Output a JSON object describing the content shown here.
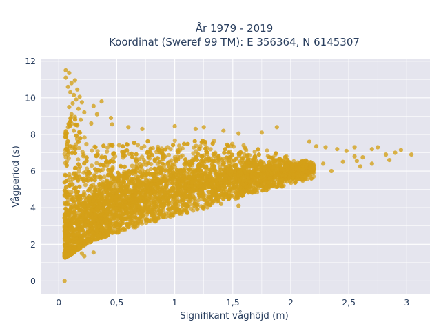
{
  "chart_data": {
    "type": "scatter",
    "title_lines": [
      "År 1979 - 2019",
      "Koordinat (Sweref 99 TM): E 356364, N 6145307"
    ],
    "xlabel": "Signifikant våghöjd (m)",
    "ylabel": "Vågperiod (s)",
    "xlim": [
      -0.15,
      3.2
    ],
    "ylim": [
      -0.7,
      12.1
    ],
    "x_ticks": [
      0,
      0.5,
      1,
      1.5,
      2,
      2.5,
      3
    ],
    "x_tick_labels": [
      "0",
      "0,5",
      "1",
      "1,5",
      "2",
      "2,5",
      "3"
    ],
    "y_ticks": [
      0,
      2,
      4,
      6,
      8,
      10,
      12
    ],
    "y_tick_labels": [
      "0",
      "2",
      "4",
      "6",
      "8",
      "10",
      "12"
    ],
    "grid": true,
    "marker_color": "#D4A017",
    "plot_background": "#E5E5EE",
    "series": [
      {
        "points": [
          [
            0.06,
            11.5
          ],
          [
            0.09,
            11.35
          ],
          [
            0.06,
            11.1
          ],
          [
            0.11,
            10.8
          ],
          [
            0.14,
            10.95
          ],
          [
            0.08,
            10.6
          ],
          [
            0.16,
            10.45
          ],
          [
            0.1,
            10.3
          ],
          [
            0.13,
            10.15
          ],
          [
            0.18,
            10.05
          ],
          [
            0.15,
            9.9
          ],
          [
            0.12,
            9.7
          ],
          [
            0.2,
            9.75
          ],
          [
            0.09,
            9.5
          ],
          [
            0.17,
            9.4
          ],
          [
            0.22,
            9.2
          ],
          [
            0.11,
            9.1
          ],
          [
            0.14,
            8.95
          ],
          [
            0.1,
            8.7
          ],
          [
            0.19,
            8.8
          ],
          [
            0.08,
            8.4
          ],
          [
            0.16,
            8.5
          ],
          [
            0.13,
            8.2
          ],
          [
            0.07,
            8.05
          ],
          [
            0.3,
            9.55
          ],
          [
            0.37,
            9.8
          ],
          [
            0.33,
            9.1
          ],
          [
            0.45,
            8.9
          ],
          [
            0.28,
            8.6
          ],
          [
            0.46,
            8.55
          ],
          [
            0.6,
            8.4
          ],
          [
            0.72,
            8.3
          ],
          [
            1.0,
            8.45
          ],
          [
            1.18,
            8.3
          ],
          [
            1.25,
            8.4
          ],
          [
            1.42,
            8.2
          ],
          [
            1.55,
            8.05
          ],
          [
            1.75,
            8.1
          ],
          [
            1.88,
            8.4
          ],
          [
            2.16,
            7.6
          ],
          [
            2.22,
            7.35
          ],
          [
            2.3,
            7.3
          ],
          [
            2.4,
            7.2
          ],
          [
            2.48,
            7.1
          ],
          [
            2.55,
            7.3
          ],
          [
            2.7,
            7.2
          ],
          [
            2.75,
            7.3
          ],
          [
            2.82,
            6.9
          ],
          [
            2.9,
            7.0
          ],
          [
            2.95,
            7.15
          ],
          [
            3.04,
            6.9
          ],
          [
            2.85,
            6.6
          ],
          [
            2.62,
            6.75
          ],
          [
            2.55,
            6.8
          ],
          [
            2.7,
            6.4
          ],
          [
            2.6,
            6.25
          ],
          [
            2.57,
            6.55
          ],
          [
            2.45,
            6.5
          ],
          [
            2.28,
            6.4
          ],
          [
            2.35,
            6.0
          ],
          [
            2.2,
            6.2
          ],
          [
            2.1,
            6.1
          ],
          [
            1.55,
            4.1
          ],
          [
            1.4,
            4.2
          ],
          [
            1.25,
            4.05
          ],
          [
            1.1,
            3.9
          ],
          [
            0.95,
            3.55
          ],
          [
            0.8,
            3.35
          ],
          [
            0.6,
            3.0
          ],
          [
            0.45,
            2.75
          ],
          [
            0.35,
            2.5
          ],
          [
            0.25,
            2.2
          ],
          [
            0.18,
            1.9
          ],
          [
            0.12,
            1.6
          ],
          [
            0.08,
            1.4
          ],
          [
            0.06,
            1.45
          ],
          [
            0.2,
            1.5
          ],
          [
            0.22,
            1.35
          ],
          [
            0.3,
            1.55
          ],
          [
            0.05,
            0.0
          ],
          [
            0.08,
            6.9
          ],
          [
            0.07,
            7.3
          ],
          [
            0.12,
            7.0
          ],
          [
            0.05,
            1.5
          ]
        ]
      }
    ],
    "cloud": {
      "x_min": 0.05,
      "x_max": 2.2,
      "lower_bound": [
        [
          0.05,
          1.25
        ],
        [
          0.1,
          1.4
        ],
        [
          0.2,
          1.85
        ],
        [
          0.3,
          2.2
        ],
        [
          0.5,
          2.6
        ],
        [
          0.7,
          3.0
        ],
        [
          1.0,
          3.55
        ],
        [
          1.3,
          4.0
        ],
        [
          1.6,
          4.6
        ],
        [
          1.8,
          4.95
        ],
        [
          2.0,
          5.3
        ],
        [
          2.2,
          5.6
        ]
      ],
      "upper_bound": [
        [
          0.05,
          8.0
        ],
        [
          0.12,
          9.2
        ],
        [
          0.2,
          8.0
        ],
        [
          0.35,
          7.4
        ],
        [
          0.5,
          7.5
        ],
        [
          0.8,
          7.65
        ],
        [
          1.1,
          7.75
        ],
        [
          1.4,
          7.65
        ],
        [
          1.7,
          7.3
        ],
        [
          2.0,
          6.8
        ],
        [
          2.2,
          6.45
        ]
      ],
      "density_peak": [
        [
          0.05,
          2.0
        ],
        [
          0.3,
          3.6
        ],
        [
          0.6,
          4.4
        ],
        [
          1.0,
          5.1
        ],
        [
          1.5,
          5.6
        ],
        [
          2.0,
          6.0
        ],
        [
          2.2,
          6.1
        ]
      ]
    }
  }
}
